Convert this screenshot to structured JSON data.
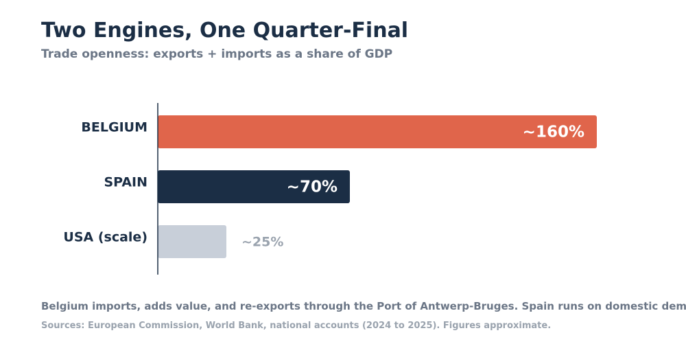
{
  "header": {
    "title": "Two Engines, One Quarter-Final",
    "subtitle": "Trade openness: exports + imports as a share of GDP"
  },
  "chart_data": {
    "type": "bar",
    "orientation": "horizontal",
    "title": "",
    "xlabel": "",
    "ylabel": "",
    "categories": [
      "BELGIUM",
      "SPAIN",
      "USA (scale)"
    ],
    "values": [
      160,
      70,
      25
    ],
    "value_labels": [
      "~160%",
      "~70%",
      "~25%"
    ],
    "colors": [
      "#e0654b",
      "#1b2e45",
      "#c8cfd9"
    ],
    "label_colors": [
      "#ffffff",
      "#ffffff",
      "#9aa3ae"
    ],
    "xlim": [
      0,
      160
    ],
    "grid": false,
    "legend": "none"
  },
  "footer": {
    "note": "Belgium imports, adds value, and re-exports through the Port of Antwerp-Bruges. Spain runs on domestic demand.",
    "source": "Sources: European Commission, World Bank, national accounts (2024 to 2025). Figures approximate."
  }
}
